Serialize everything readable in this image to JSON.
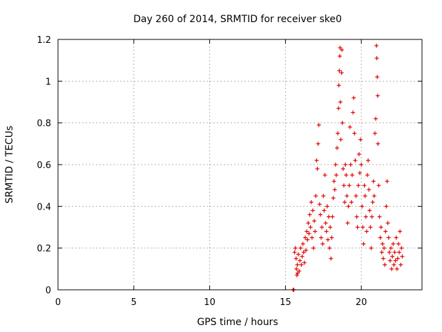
{
  "chart_data": {
    "type": "scatter",
    "title": "Day 260 of 2014, SRMTID for receiver ske0",
    "xlabel": "GPS time / hours",
    "ylabel": "SRMTID / TECUs",
    "xlim": [
      0,
      24
    ],
    "ylim": [
      0,
      1.2
    ],
    "xticks": [
      0,
      5,
      10,
      15,
      20
    ],
    "yticks": [
      0,
      0.2,
      0.4,
      0.6,
      0.8,
      1,
      1.2
    ],
    "grid": true,
    "marker": "+",
    "color": "#e00000",
    "series": [
      {
        "name": "SRMTID",
        "points": [
          [
            15.5,
            0.0
          ],
          [
            15.52,
            0.0
          ],
          [
            15.55,
            0.0
          ],
          [
            15.6,
            0.18
          ],
          [
            15.65,
            0.2
          ],
          [
            15.7,
            0.15
          ],
          [
            15.72,
            0.1
          ],
          [
            15.75,
            0.07
          ],
          [
            15.78,
            0.12
          ],
          [
            15.8,
            0.08
          ],
          [
            15.85,
            0.17
          ],
          [
            15.9,
            0.09
          ],
          [
            15.95,
            0.14
          ],
          [
            16.0,
            0.2
          ],
          [
            16.05,
            0.12
          ],
          [
            16.1,
            0.16
          ],
          [
            16.15,
            0.22
          ],
          [
            16.2,
            0.18
          ],
          [
            16.25,
            0.13
          ],
          [
            16.3,
            0.25
          ],
          [
            16.35,
            0.19
          ],
          [
            16.4,
            0.28
          ],
          [
            16.45,
            0.24
          ],
          [
            16.5,
            0.32
          ],
          [
            16.55,
            0.27
          ],
          [
            16.6,
            0.36
          ],
          [
            16.65,
            0.3
          ],
          [
            16.7,
            0.42
          ],
          [
            16.75,
            0.25
          ],
          [
            16.8,
            0.38
          ],
          [
            16.85,
            0.2
          ],
          [
            16.9,
            0.33
          ],
          [
            16.95,
            0.28
          ],
          [
            17.0,
            0.45
          ],
          [
            17.05,
            0.62
          ],
          [
            17.1,
            0.58
          ],
          [
            17.15,
            0.7
          ],
          [
            17.2,
            0.79
          ],
          [
            17.25,
            0.41
          ],
          [
            17.3,
            0.36
          ],
          [
            17.35,
            0.25
          ],
          [
            17.4,
            0.3
          ],
          [
            17.45,
            0.22
          ],
          [
            17.5,
            0.45
          ],
          [
            17.55,
            0.38
          ],
          [
            17.6,
            0.55
          ],
          [
            17.65,
            0.32
          ],
          [
            17.7,
            0.28
          ],
          [
            17.75,
            0.4
          ],
          [
            17.8,
            0.24
          ],
          [
            17.85,
            0.35
          ],
          [
            17.9,
            0.2
          ],
          [
            17.95,
            0.3
          ],
          [
            18.0,
            0.15
          ],
          [
            18.05,
            0.25
          ],
          [
            18.1,
            0.35
          ],
          [
            18.15,
            0.44
          ],
          [
            18.2,
            0.52
          ],
          [
            18.25,
            0.48
          ],
          [
            18.3,
            0.6
          ],
          [
            18.35,
            0.55
          ],
          [
            18.4,
            0.68
          ],
          [
            18.45,
            0.75
          ],
          [
            18.5,
            0.87
          ],
          [
            18.52,
            0.98
          ],
          [
            18.55,
            1.05
          ],
          [
            18.58,
            1.12
          ],
          [
            18.6,
            1.16
          ],
          [
            18.62,
            0.9
          ],
          [
            18.65,
            0.72
          ],
          [
            18.7,
            1.04
          ],
          [
            18.72,
            1.15
          ],
          [
            18.75,
            0.8
          ],
          [
            18.8,
            0.58
          ],
          [
            18.85,
            0.5
          ],
          [
            18.9,
            0.42
          ],
          [
            18.95,
            0.6
          ],
          [
            19.0,
            0.55
          ],
          [
            19.05,
            0.45
          ],
          [
            19.1,
            0.32
          ],
          [
            19.15,
            0.4
          ],
          [
            19.2,
            0.5
          ],
          [
            19.25,
            0.78
          ],
          [
            19.3,
            0.6
          ],
          [
            19.35,
            0.42
          ],
          [
            19.4,
            0.55
          ],
          [
            19.45,
            0.85
          ],
          [
            19.5,
            0.92
          ],
          [
            19.55,
            0.75
          ],
          [
            19.6,
            0.62
          ],
          [
            19.65,
            0.45
          ],
          [
            19.7,
            0.35
          ],
          [
            19.75,
            0.3
          ],
          [
            19.8,
            0.5
          ],
          [
            19.85,
            0.65
          ],
          [
            19.9,
            0.56
          ],
          [
            19.95,
            0.72
          ],
          [
            20.0,
            0.6
          ],
          [
            20.05,
            0.4
          ],
          [
            20.1,
            0.3
          ],
          [
            20.15,
            0.22
          ],
          [
            20.2,
            0.5
          ],
          [
            20.25,
            0.45
          ],
          [
            20.3,
            0.35
          ],
          [
            20.35,
            0.28
          ],
          [
            20.4,
            0.55
          ],
          [
            20.45,
            0.62
          ],
          [
            20.5,
            0.48
          ],
          [
            20.55,
            0.38
          ],
          [
            20.6,
            0.3
          ],
          [
            20.65,
            0.2
          ],
          [
            20.7,
            0.35
          ],
          [
            20.75,
            0.42
          ],
          [
            20.8,
            0.52
          ],
          [
            20.85,
            0.45
          ],
          [
            20.9,
            0.75
          ],
          [
            20.95,
            0.82
          ],
          [
            21.0,
            1.17
          ],
          [
            21.02,
            1.11
          ],
          [
            21.05,
            1.02
          ],
          [
            21.08,
            0.93
          ],
          [
            21.1,
            0.7
          ],
          [
            21.15,
            0.5
          ],
          [
            21.2,
            0.35
          ],
          [
            21.25,
            0.25
          ],
          [
            21.3,
            0.3
          ],
          [
            21.35,
            0.18
          ],
          [
            21.4,
            0.22
          ],
          [
            21.45,
            0.15
          ],
          [
            21.5,
            0.2
          ],
          [
            21.55,
            0.12
          ],
          [
            21.6,
            0.28
          ],
          [
            21.65,
            0.4
          ],
          [
            21.7,
            0.52
          ],
          [
            21.75,
            0.32
          ],
          [
            21.8,
            0.25
          ],
          [
            21.85,
            0.18
          ],
          [
            21.9,
            0.14
          ],
          [
            21.95,
            0.2
          ],
          [
            22.0,
            0.1
          ],
          [
            22.05,
            0.16
          ],
          [
            22.1,
            0.22
          ],
          [
            22.15,
            0.12
          ],
          [
            22.2,
            0.18
          ],
          [
            22.25,
            0.14
          ],
          [
            22.3,
            0.25
          ],
          [
            22.35,
            0.1
          ],
          [
            22.4,
            0.15
          ],
          [
            22.45,
            0.22
          ],
          [
            22.5,
            0.18
          ],
          [
            22.55,
            0.28
          ],
          [
            22.6,
            0.12
          ],
          [
            22.65,
            0.2
          ],
          [
            22.7,
            0.16
          ]
        ]
      }
    ]
  }
}
